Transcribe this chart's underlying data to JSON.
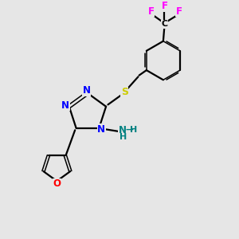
{
  "background_color": "#e6e6e6",
  "bond_color": "#000000",
  "N_color": "#0000ff",
  "S_color": "#cccc00",
  "O_color": "#ff0000",
  "F_color": "#ff00ff",
  "NH_color": "#008080",
  "figsize": [
    3.0,
    3.0
  ],
  "dpi": 100,
  "xlim": [
    0,
    10
  ],
  "ylim": [
    0,
    10
  ]
}
